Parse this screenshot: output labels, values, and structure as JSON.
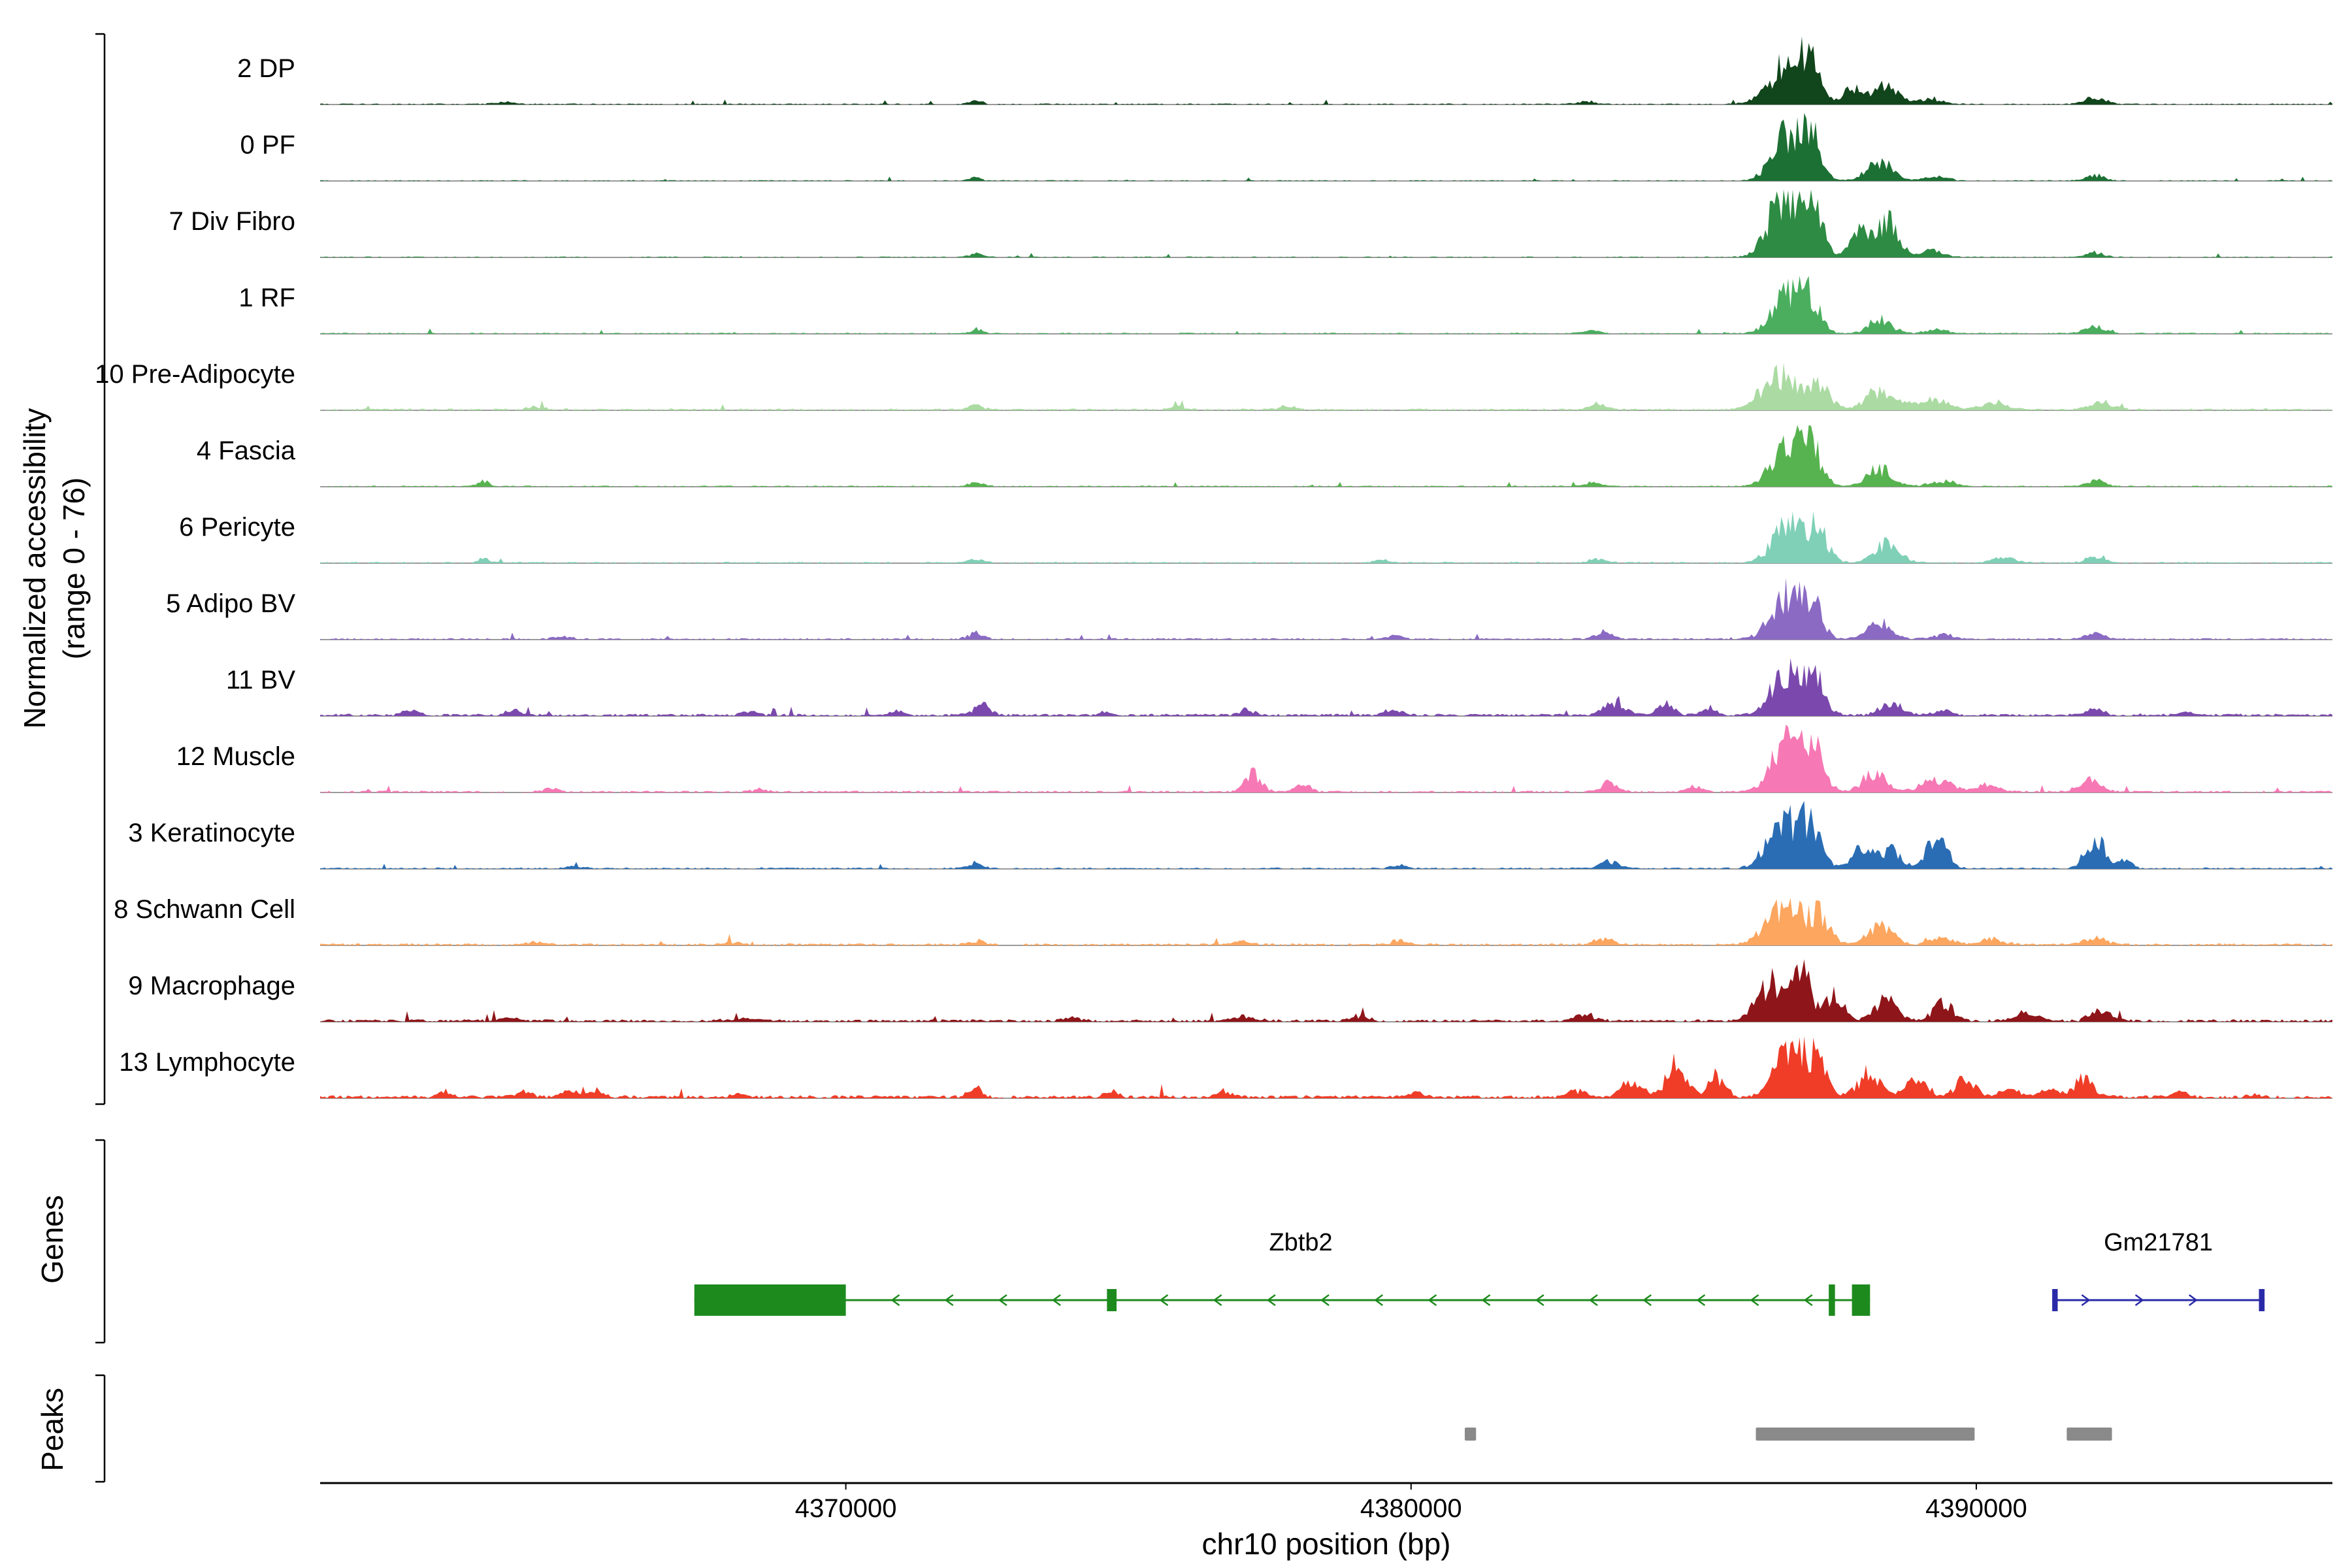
{
  "chart_data": {
    "type": "area",
    "title": "",
    "xlabel": "chr10 position (bp)",
    "ylabel_line1": "Normalized accessibility",
    "ylabel_line2": "(range 0 - 76)",
    "y_range": [
      0,
      76
    ],
    "genes_section_label": "Genes",
    "peaks_section_label": "Peaks",
    "x_axis": {
      "bp_min": 4360700,
      "bp_max": 4396300,
      "ticks": [
        4370000,
        4380000,
        4390000
      ]
    },
    "tracks": [
      {
        "name": "2 DP",
        "color": "#11451b",
        "noise": 0.018,
        "peaks": [
          [
            4386650,
            0.62,
            300
          ],
          [
            4387050,
            0.5,
            180
          ],
          [
            4387800,
            0.22,
            150
          ],
          [
            4388400,
            0.28,
            220
          ],
          [
            4389200,
            0.07,
            200
          ],
          [
            4372300,
            0.05,
            120
          ],
          [
            4383100,
            0.04,
            150
          ],
          [
            4392100,
            0.1,
            180
          ],
          [
            4364000,
            0.03,
            200
          ]
        ]
      },
      {
        "name": "0 PF",
        "color": "#1d7034",
        "noise": 0.016,
        "peaks": [
          [
            4386700,
            0.72,
            280
          ],
          [
            4387100,
            0.5,
            160
          ],
          [
            4388300,
            0.3,
            220
          ],
          [
            4389300,
            0.06,
            200
          ],
          [
            4392100,
            0.08,
            160
          ],
          [
            4372300,
            0.04,
            120
          ]
        ]
      },
      {
        "name": "7 Div Fibro",
        "color": "#2e8b43",
        "noise": 0.016,
        "peaks": [
          [
            4386600,
            0.95,
            260
          ],
          [
            4387100,
            0.75,
            170
          ],
          [
            4387900,
            0.35,
            160
          ],
          [
            4388400,
            0.55,
            200
          ],
          [
            4389200,
            0.1,
            180
          ],
          [
            4392100,
            0.07,
            150
          ],
          [
            4372300,
            0.05,
            120
          ]
        ]
      },
      {
        "name": "1 RF",
        "color": "#4aae5e",
        "noise": 0.02,
        "peaks": [
          [
            4386700,
            0.58,
            280
          ],
          [
            4387100,
            0.4,
            160
          ],
          [
            4388300,
            0.22,
            200
          ],
          [
            4389300,
            0.06,
            180
          ],
          [
            4392100,
            0.1,
            170
          ],
          [
            4372300,
            0.06,
            120
          ],
          [
            4383200,
            0.05,
            140
          ]
        ]
      },
      {
        "name": "10 Pre-Adipocyte",
        "color": "#abdba3",
        "noise": 0.028,
        "peaks": [
          [
            4386500,
            0.5,
            300
          ],
          [
            4387200,
            0.38,
            200
          ],
          [
            4388300,
            0.28,
            250
          ],
          [
            4389200,
            0.18,
            250
          ],
          [
            4390300,
            0.1,
            220
          ],
          [
            4392200,
            0.12,
            200
          ],
          [
            4372300,
            0.06,
            140
          ],
          [
            4375900,
            0.05,
            130
          ],
          [
            4377800,
            0.05,
            130
          ],
          [
            4383300,
            0.07,
            160
          ],
          [
            4364500,
            0.04,
            150
          ]
        ]
      },
      {
        "name": "4 Fascia",
        "color": "#57b34f",
        "noise": 0.02,
        "peaks": [
          [
            4386700,
            0.6,
            290
          ],
          [
            4387100,
            0.44,
            170
          ],
          [
            4388300,
            0.26,
            220
          ],
          [
            4389400,
            0.08,
            200
          ],
          [
            4392100,
            0.09,
            160
          ],
          [
            4363600,
            0.08,
            100
          ],
          [
            4372300,
            0.05,
            130
          ],
          [
            4383200,
            0.05,
            140
          ]
        ]
      },
      {
        "name": "6 Pericyte",
        "color": "#7fd0b6",
        "noise": 0.022,
        "peaks": [
          [
            4386700,
            0.58,
            280
          ],
          [
            4387200,
            0.4,
            180
          ],
          [
            4388400,
            0.28,
            220
          ],
          [
            4390500,
            0.08,
            200
          ],
          [
            4392100,
            0.08,
            160
          ],
          [
            4363600,
            0.06,
            100
          ],
          [
            4372300,
            0.05,
            130
          ],
          [
            4379500,
            0.04,
            140
          ],
          [
            4383300,
            0.05,
            150
          ]
        ]
      },
      {
        "name": "5 Adipo BV",
        "color": "#8b6ac4",
        "noise": 0.026,
        "peaks": [
          [
            4386650,
            0.62,
            270
          ],
          [
            4387100,
            0.45,
            170
          ],
          [
            4388300,
            0.24,
            210
          ],
          [
            4389400,
            0.07,
            180
          ],
          [
            4392100,
            0.08,
            160
          ],
          [
            4372300,
            0.1,
            120
          ],
          [
            4383400,
            0.11,
            150
          ],
          [
            4379700,
            0.05,
            140
          ],
          [
            4365000,
            0.04,
            150
          ]
        ]
      },
      {
        "name": "11 BV",
        "color": "#7b49ad",
        "noise": 0.04,
        "peaks": [
          [
            4386650,
            0.66,
            270
          ],
          [
            4387150,
            0.48,
            170
          ],
          [
            4388500,
            0.16,
            200
          ],
          [
            4389400,
            0.06,
            180
          ],
          [
            4392100,
            0.09,
            160
          ],
          [
            4362300,
            0.1,
            110
          ],
          [
            4364100,
            0.07,
            110
          ],
          [
            4368300,
            0.06,
            120
          ],
          [
            4370900,
            0.06,
            110
          ],
          [
            4372400,
            0.18,
            130
          ],
          [
            4374600,
            0.05,
            110
          ],
          [
            4377100,
            0.08,
            130
          ],
          [
            4379700,
            0.1,
            130
          ],
          [
            4383600,
            0.22,
            170
          ],
          [
            4384500,
            0.16,
            140
          ],
          [
            4385300,
            0.1,
            130
          ],
          [
            4393700,
            0.05,
            130
          ]
        ]
      },
      {
        "name": "12 Muscle",
        "color": "#f678b4",
        "noise": 0.03,
        "peaks": [
          [
            4386650,
            0.78,
            260
          ],
          [
            4387150,
            0.55,
            170
          ],
          [
            4388200,
            0.28,
            200
          ],
          [
            4389300,
            0.18,
            250
          ],
          [
            4390200,
            0.1,
            200
          ],
          [
            4377200,
            0.3,
            140
          ],
          [
            4378100,
            0.1,
            140
          ],
          [
            4383500,
            0.12,
            160
          ],
          [
            4385000,
            0.08,
            150
          ],
          [
            4392000,
            0.18,
            180
          ],
          [
            4364800,
            0.05,
            130
          ],
          [
            4368500,
            0.04,
            130
          ]
        ]
      },
      {
        "name": "3 Keratinocyte",
        "color": "#2a6db4",
        "noise": 0.024,
        "peaks": [
          [
            4386600,
            0.72,
            280
          ],
          [
            4387100,
            0.55,
            180
          ],
          [
            4388000,
            0.3,
            180
          ],
          [
            4388500,
            0.25,
            180
          ],
          [
            4389300,
            0.5,
            170
          ],
          [
            4392100,
            0.46,
            170
          ],
          [
            4392600,
            0.1,
            150
          ],
          [
            4383500,
            0.1,
            160
          ],
          [
            4372300,
            0.09,
            120
          ],
          [
            4379800,
            0.05,
            140
          ],
          [
            4365200,
            0.04,
            140
          ]
        ]
      },
      {
        "name": "8 Schwann Cell",
        "color": "#fca65f",
        "noise": 0.034,
        "peaks": [
          [
            4386600,
            0.55,
            300
          ],
          [
            4387200,
            0.4,
            190
          ],
          [
            4388300,
            0.26,
            220
          ],
          [
            4389400,
            0.1,
            200
          ],
          [
            4390300,
            0.08,
            200
          ],
          [
            4392100,
            0.1,
            180
          ],
          [
            4383400,
            0.08,
            170
          ],
          [
            4379800,
            0.06,
            150
          ],
          [
            4377000,
            0.05,
            150
          ],
          [
            4372300,
            0.06,
            130
          ],
          [
            4368000,
            0.04,
            150
          ],
          [
            4364500,
            0.04,
            150
          ]
        ]
      },
      {
        "name": "9 Macrophage",
        "color": "#8e1519",
        "noise": 0.042,
        "peaks": [
          [
            4386400,
            0.55,
            260
          ],
          [
            4386900,
            0.72,
            170
          ],
          [
            4387500,
            0.35,
            160
          ],
          [
            4388400,
            0.3,
            200
          ],
          [
            4389400,
            0.26,
            180
          ],
          [
            4390900,
            0.12,
            200
          ],
          [
            4392200,
            0.18,
            170
          ],
          [
            4383100,
            0.1,
            160
          ],
          [
            4379100,
            0.08,
            140
          ],
          [
            4377000,
            0.07,
            140
          ],
          [
            4374000,
            0.05,
            140
          ],
          [
            4368200,
            0.05,
            140
          ],
          [
            4364000,
            0.05,
            140
          ]
        ]
      },
      {
        "name": "13 Lymphocyte",
        "color": "#ef3d28",
        "noise": 0.05,
        "peaks": [
          [
            4386700,
            0.8,
            240
          ],
          [
            4387200,
            0.55,
            160
          ],
          [
            4388100,
            0.38,
            180
          ],
          [
            4388900,
            0.3,
            180
          ],
          [
            4389800,
            0.26,
            180
          ],
          [
            4390600,
            0.12,
            160
          ],
          [
            4391300,
            0.12,
            150
          ],
          [
            4391900,
            0.28,
            160
          ],
          [
            4383900,
            0.26,
            170
          ],
          [
            4384700,
            0.5,
            170
          ],
          [
            4385400,
            0.3,
            150
          ],
          [
            4382900,
            0.1,
            150
          ],
          [
            4372300,
            0.13,
            120
          ],
          [
            4374700,
            0.07,
            120
          ],
          [
            4376700,
            0.09,
            130
          ],
          [
            4380100,
            0.07,
            130
          ],
          [
            4362900,
            0.08,
            110
          ],
          [
            4364300,
            0.1,
            110
          ],
          [
            4365100,
            0.09,
            110
          ],
          [
            4365600,
            0.1,
            110
          ],
          [
            4368100,
            0.05,
            120
          ],
          [
            4393600,
            0.07,
            130
          ],
          [
            4394900,
            0.05,
            120
          ]
        ]
      }
    ],
    "genes": [
      {
        "name": "Zbtb2",
        "color": "#1d8a1d",
        "strand": "-",
        "start": 4367320,
        "end": 4388120,
        "label_bp": 4378050,
        "exons": [
          [
            4367320,
            4370000,
            "tall"
          ],
          [
            4374620,
            4374790,
            "short"
          ],
          [
            4387390,
            4387500,
            "tall"
          ],
          [
            4387800,
            4388120,
            "tall"
          ]
        ]
      },
      {
        "name": "Gm21781",
        "color": "#2a2aa8",
        "strand": "+",
        "start": 4391343,
        "end": 4395100,
        "label_bp": 4393220,
        "exons": [
          [
            4391343,
            4391440,
            "short"
          ],
          [
            4395000,
            4395100,
            "short"
          ]
        ]
      }
    ],
    "peak_regions": [
      [
        4380950,
        4381150
      ],
      [
        4386100,
        4389970
      ],
      [
        4391600,
        4392400
      ]
    ],
    "peak_color": "#8a8a8a"
  }
}
